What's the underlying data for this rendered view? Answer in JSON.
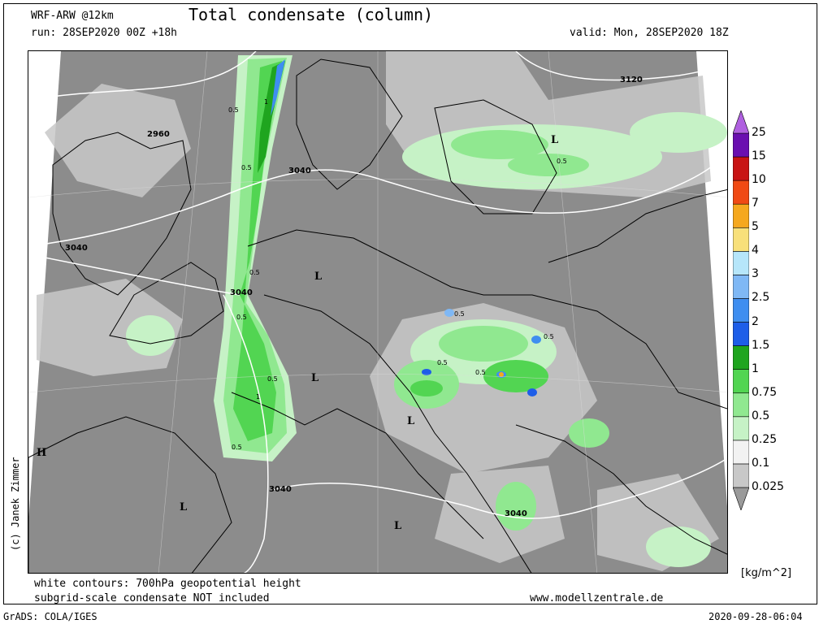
{
  "header": {
    "model": "WRF-ARW @12km",
    "title": "Total condensate (column)",
    "run": "run: 28SEP2020 00Z +18h",
    "valid": "valid: Mon, 28SEP2020 18Z"
  },
  "footer": {
    "note1": "white contours: 700hPa geopotential height",
    "note2": "subgrid-scale condensate NOT included",
    "website": "www.modellzentrale.de",
    "grads": "GrADS: COLA/IGES",
    "timestamp": "2020-09-28-06:04",
    "copyright": "(c) Janek Zimmer"
  },
  "colorbar": {
    "unit": "[kg/m^2]",
    "levels": [
      "0.025",
      "0.1",
      "0.25",
      "0.5",
      "0.75",
      "1",
      "1.5",
      "2",
      "2.5",
      "3",
      "4",
      "5",
      "7",
      "10",
      "15",
      "25"
    ],
    "colors": [
      "#9a9a9a",
      "#c8c8c8",
      "#f2f2f2",
      "#c6f2c6",
      "#90e890",
      "#52d552",
      "#1fa51f",
      "#1e5ee8",
      "#3f8ef0",
      "#7fb8f5",
      "#b6e6fa",
      "#f8e07a",
      "#f5a81e",
      "#f04a14",
      "#c81414",
      "#6a0fb0",
      "#b060e0"
    ]
  },
  "map": {
    "contour_labels": [
      {
        "text": "2960"
      },
      {
        "text": "3040"
      },
      {
        "text": "3040"
      },
      {
        "text": "3040"
      },
      {
        "text": "3040"
      },
      {
        "text": "3040"
      },
      {
        "text": "3120"
      }
    ],
    "pressure_labels": [
      "L",
      "L",
      "L",
      "L",
      "L",
      "L",
      "H"
    ],
    "value_labels": [
      "0.5",
      "1",
      "0.5",
      "0.5",
      "0.5",
      "1",
      "0.5",
      "0.5",
      "0.5",
      "0.5",
      "0.5",
      "0.5",
      "0.5"
    ]
  }
}
